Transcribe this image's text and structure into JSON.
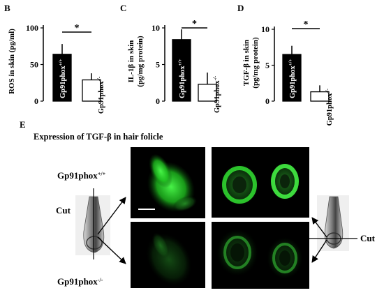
{
  "chart_data": [
    {
      "type": "bar",
      "panel_label": "B",
      "ylabel": "ROS in skin (pg/ml)",
      "yticks": [
        "0",
        "50",
        "100"
      ],
      "ylim": [
        0,
        100
      ],
      "categories": [
        "Gp91phox",
        "Gp91phox"
      ],
      "superscripts": [
        "+/+",
        "-/-"
      ],
      "values": [
        64,
        29
      ],
      "errors": [
        14,
        9
      ],
      "significance": "*",
      "colors": [
        "#000000",
        "#ffffff"
      ]
    },
    {
      "type": "bar",
      "panel_label": "C",
      "ylabel": [
        "IL-1β in skin",
        "(pg/mg protein)"
      ],
      "yticks": [
        "0",
        "5",
        "10"
      ],
      "ylim": [
        0,
        10
      ],
      "categories": [
        "Gp91phox",
        "Gp91phox"
      ],
      "superscripts": [
        "+/+",
        "-/-"
      ],
      "values": [
        8.4,
        2.3
      ],
      "errors": [
        1.4,
        1.6
      ],
      "significance": "*",
      "colors": [
        "#000000",
        "#ffffff"
      ]
    },
    {
      "type": "bar",
      "panel_label": "D",
      "ylabel": [
        "TGF-β in skin",
        "(pg/mg protein)"
      ],
      "yticks": [
        "0",
        "5",
        "10"
      ],
      "ylim": [
        0,
        10
      ],
      "categories": [
        "Gp91phox",
        "Gp91phox"
      ],
      "superscripts": [
        "+/+",
        "-/-"
      ],
      "values": [
        6.5,
        1.3
      ],
      "errors": [
        1.2,
        0.9
      ],
      "significance": "*",
      "colors": [
        "#000000",
        "#ffffff"
      ]
    }
  ],
  "panel_e": {
    "label": "E",
    "title": "Expression of TGF-β in hair folicle",
    "row_labels": [
      {
        "base": "Gp91phox",
        "sup": "+/+"
      },
      {
        "base": "Gp91phox",
        "sup": "-/-"
      }
    ],
    "cut_label": "Cut",
    "fill_color": "#33cc33",
    "background_color": "#000000"
  }
}
